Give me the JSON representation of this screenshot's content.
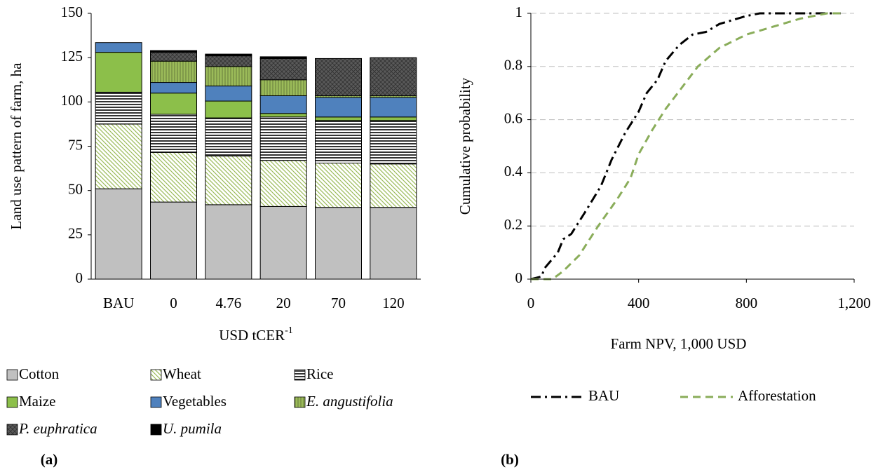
{
  "chart_data": [
    {
      "type": "bar",
      "stacked": true,
      "panel_label": "(a)",
      "ylabel": "Land use pattern of farm, ha",
      "xlabel": "USD tCER",
      "xlabel_superscript": "-1",
      "categories": [
        "BAU",
        "0",
        "4.76",
        "20",
        "70",
        "120"
      ],
      "ylim": [
        0,
        150
      ],
      "yticks": [
        0,
        25,
        50,
        75,
        100,
        125,
        150
      ],
      "series": [
        {
          "name": "Cotton",
          "color": "#c0c0c0",
          "pattern": "solid",
          "italic": false,
          "values": [
            51,
            43.5,
            42,
            41,
            40.5,
            40.5
          ]
        },
        {
          "name": "Wheat",
          "color": "#9bbb59",
          "pattern": "diagonal",
          "italic": false,
          "values": [
            36.5,
            28,
            27.5,
            26,
            25,
            24.5
          ]
        },
        {
          "name": "Rice",
          "color": "#000000",
          "pattern": "horizontal",
          "italic": false,
          "values": [
            18,
            21.5,
            21.5,
            24.5,
            24,
            24.5
          ]
        },
        {
          "name": "Maize",
          "color": "#8cbf4a",
          "pattern": "solid",
          "italic": false,
          "values": [
            22.5,
            12,
            9.5,
            2,
            2,
            2
          ]
        },
        {
          "name": "Vegetables",
          "color": "#4f81bd",
          "pattern": "solid",
          "italic": false,
          "values": [
            5.5,
            6,
            8.5,
            10,
            11,
            11
          ]
        },
        {
          "name": "E. angustifolia",
          "color": "#9bbb59",
          "pattern": "vertical",
          "italic": true,
          "values": [
            0,
            12,
            11,
            9,
            1,
            1
          ]
        },
        {
          "name": "P. euphratica",
          "color": "#595959",
          "pattern": "crosshatch",
          "italic": true,
          "values": [
            0,
            5,
            6,
            12,
            21,
            21.5
          ]
        },
        {
          "name": "U. pumila",
          "color": "#000000",
          "pattern": "solid",
          "italic": true,
          "values": [
            0,
            1,
            1,
            1,
            0,
            0
          ]
        }
      ]
    },
    {
      "type": "line",
      "panel_label": "(b)",
      "ylabel": "Cumulative probability",
      "xlabel": "Farm NPV,  1,000 USD",
      "xlim": [
        0,
        1200
      ],
      "xticks": [
        0,
        400,
        800,
        {
          "value": 1200,
          "label": "1,200"
        }
      ],
      "ylim": [
        0,
        1
      ],
      "yticks": [
        0,
        0.2,
        0.4,
        0.6,
        0.8,
        1
      ],
      "grid": true,
      "series": [
        {
          "name": "BAU",
          "color": "#000000",
          "linestyle": "dashdot",
          "x": [
            0,
            40,
            50,
            100,
            120,
            150,
            200,
            260,
            300,
            350,
            400,
            430,
            470,
            500,
            550,
            600,
            650,
            700,
            800,
            850,
            1000,
            1150
          ],
          "values": [
            0,
            0.01,
            0.04,
            0.1,
            0.15,
            0.17,
            0.25,
            0.35,
            0.45,
            0.55,
            0.63,
            0.7,
            0.75,
            0.82,
            0.88,
            0.92,
            0.93,
            0.96,
            0.99,
            1,
            1,
            1
          ]
        },
        {
          "name": "Afforestation",
          "color": "#8aad5a",
          "linestyle": "dashed",
          "x": [
            0,
            80,
            120,
            180,
            250,
            320,
            370,
            400,
            450,
            500,
            560,
            620,
            700,
            800,
            900,
            1000,
            1100,
            1150
          ],
          "values": [
            0,
            0,
            0.03,
            0.09,
            0.2,
            0.3,
            0.38,
            0.47,
            0.56,
            0.64,
            0.72,
            0.8,
            0.87,
            0.92,
            0.95,
            0.98,
            1,
            1
          ]
        }
      ]
    }
  ]
}
